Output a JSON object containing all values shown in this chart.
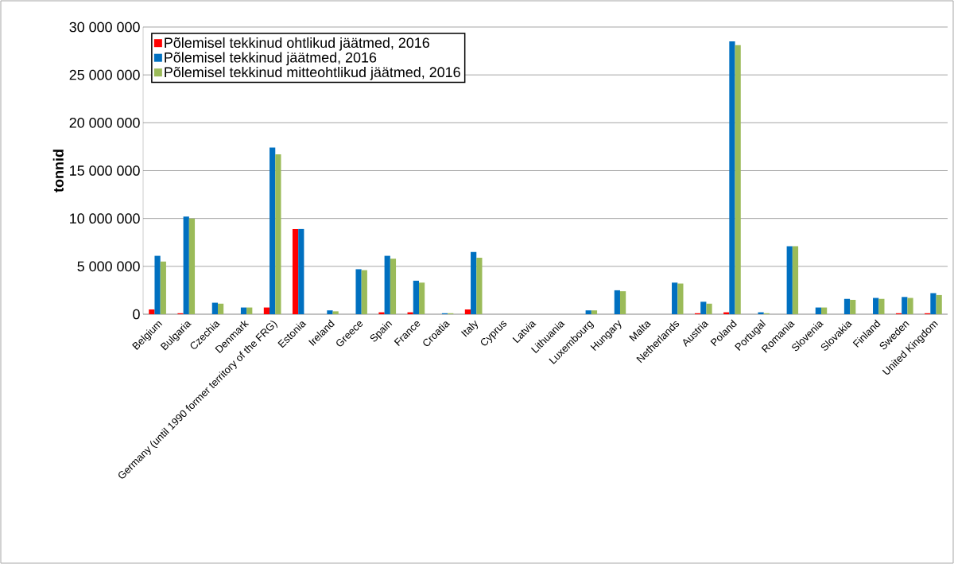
{
  "chart_data": {
    "type": "bar",
    "ylabel": "tonnid",
    "categories": [
      "Belgium",
      "Bulgaria",
      "Czechia",
      "Denmark",
      "Germany (until 1990 former territory of the FRG)",
      "Estonia",
      "Ireland",
      "Greece",
      "Spain",
      "France",
      "Croatia",
      "Italy",
      "Cyprus",
      "Latvia",
      "Lithuania",
      "Luxembourg",
      "Hungary",
      "Malta",
      "Netherlands",
      "Austria",
      "Poland",
      "Portugal",
      "Romania",
      "Slovenia",
      "Slovakia",
      "Finland",
      "Sweden",
      "United Kingdom"
    ],
    "series": [
      {
        "name": "Põlemisel tekkinud ohtlikud jäätmed, 2016",
        "color": "#ff0000",
        "values": [
          500000,
          100000,
          0,
          0,
          700000,
          8900000,
          0,
          0,
          200000,
          200000,
          0,
          500000,
          0,
          0,
          0,
          0,
          0,
          0,
          0,
          100000,
          200000,
          0,
          0,
          0,
          0,
          0,
          100000,
          100000
        ]
      },
      {
        "name": "Põlemisel tekkinud jäätmed, 2016",
        "color": "#0070c0",
        "values": [
          6100000,
          10200000,
          1200000,
          700000,
          17400000,
          8900000,
          400000,
          4700000,
          6100000,
          3500000,
          100000,
          6500000,
          0,
          0,
          0,
          400000,
          2500000,
          0,
          3300000,
          1300000,
          28500000,
          200000,
          7100000,
          700000,
          1600000,
          1700000,
          1800000,
          2200000
        ]
      },
      {
        "name": "Põlemisel tekkinud mitteohtlikud jäätmed, 2016",
        "color": "#9bbb59",
        "values": [
          5500000,
          10000000,
          1100000,
          700000,
          16700000,
          0,
          300000,
          4600000,
          5800000,
          3300000,
          100000,
          5900000,
          0,
          0,
          0,
          400000,
          2400000,
          0,
          3200000,
          1100000,
          28100000,
          100000,
          7100000,
          700000,
          1500000,
          1600000,
          1700000,
          2000000
        ]
      }
    ],
    "ylim": [
      0,
      30000000
    ],
    "yticks": [
      {
        "value": 0,
        "label": "0"
      },
      {
        "value": 5000000,
        "label": "5 000 000"
      },
      {
        "value": 10000000,
        "label": "10 000 000"
      },
      {
        "value": 15000000,
        "label": "15 000 000"
      },
      {
        "value": 20000000,
        "label": "20 000 000"
      },
      {
        "value": 25000000,
        "label": "25 000 000"
      },
      {
        "value": 30000000,
        "label": "30 000 000"
      }
    ],
    "grid": "y",
    "legend": "top left"
  }
}
